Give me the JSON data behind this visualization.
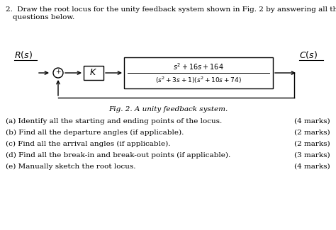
{
  "bg_color": "#ffffff",
  "font_size_title": 7.5,
  "font_size_block": 7.0,
  "font_size_label_italic": 9.0,
  "font_size_question": 7.5,
  "questions": [
    {
      "label": "(a)",
      "text": "Identify all the starting and ending points of the locus.",
      "marks": "(4 marks)"
    },
    {
      "label": "(b)",
      "text": "Find all the departure angles (if applicable).",
      "marks": "(2 marks)"
    },
    {
      "label": "(c)",
      "text": "Find all the arrival angles (if applicable).",
      "marks": "(2 marks)"
    },
    {
      "label": "(d)",
      "text": "Find all the break-in and break-out points (if applicable).",
      "marks": "(3 marks)"
    },
    {
      "label": "(e)",
      "text": "Manually sketch the root locus.",
      "marks": "(4 marks)"
    }
  ]
}
